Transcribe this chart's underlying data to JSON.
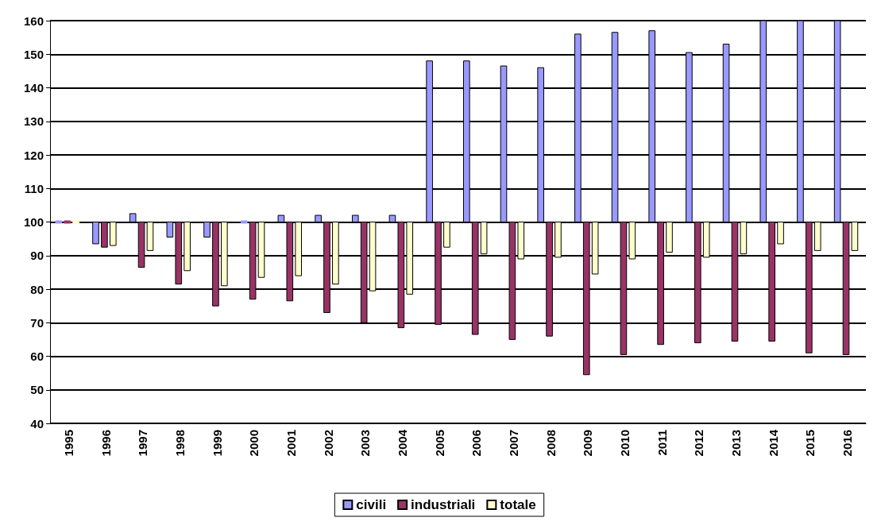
{
  "chart_data": {
    "type": "bar",
    "categories": [
      "1995",
      "1996",
      "1997",
      "1998",
      "1999",
      "2000",
      "2001",
      "2002",
      "2003",
      "2004",
      "2005",
      "2006",
      "2007",
      "2008",
      "2009",
      "2010",
      "2011",
      "2012",
      "2013",
      "2014",
      "2015",
      "2016"
    ],
    "series": [
      {
        "name": "civili",
        "color": "#9999ff",
        "base": [
          100,
          100,
          100,
          100,
          100,
          100,
          100,
          100,
          100,
          100,
          100,
          100,
          100,
          100,
          100,
          100,
          100,
          100,
          100,
          100,
          100,
          100
        ],
        "values": [
          0,
          -6.5,
          2.5,
          -4.5,
          -4.5,
          0,
          2,
          2,
          2,
          2,
          48,
          48,
          46.5,
          46,
          56,
          56.5,
          57,
          50.5,
          53,
          60,
          60,
          60
        ]
      },
      {
        "name": "industriali",
        "color": "#993366",
        "base": [
          100,
          100,
          100,
          100,
          100,
          100,
          100,
          100,
          100,
          100,
          100,
          100,
          100,
          100,
          100,
          100,
          100,
          100,
          100,
          100,
          100,
          100
        ],
        "values": [
          0,
          -7.5,
          -13.5,
          -18.5,
          -25,
          -23,
          -23.5,
          -27,
          -30,
          -31.5,
          -30.5,
          -33.5,
          -35,
          -34,
          -45.5,
          -39.5,
          -36.5,
          -36,
          -35.5,
          -35.5,
          -39,
          -39.5
        ]
      },
      {
        "name": "totale",
        "color": "#ffffcc",
        "base": [
          100,
          100,
          100,
          100,
          100,
          100,
          100,
          100,
          100,
          100,
          100,
          100,
          100,
          100,
          100,
          100,
          100,
          100,
          100,
          100,
          100,
          100
        ],
        "values": [
          0,
          -7,
          -8.5,
          -14.5,
          -19,
          -16.5,
          -16,
          -18.5,
          -20.5,
          -21.5,
          -7.5,
          -9.5,
          -11,
          -10.5,
          -15.5,
          -11,
          -9,
          -10.5,
          -9.5,
          -6.5,
          -8.5,
          -8.5
        ]
      }
    ],
    "ylim": [
      40,
      160
    ],
    "yticks": [
      40,
      50,
      60,
      70,
      80,
      90,
      100,
      110,
      120,
      130,
      140,
      150,
      160
    ],
    "grid": "y",
    "legend": "bottom"
  }
}
